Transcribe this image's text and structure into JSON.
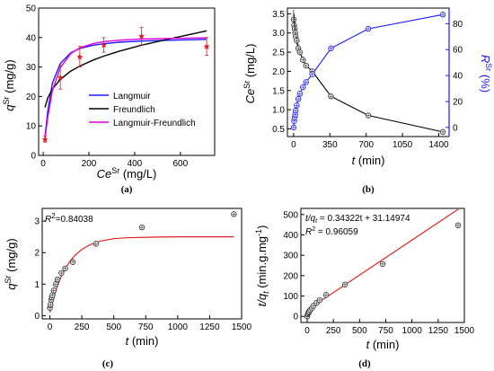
{
  "colors": {
    "langmuir": "#1a1aff",
    "freundlich": "#000000",
    "lf": "#e100e1",
    "points_a": "#e02020",
    "blue_axis": "#1a1aff",
    "fit": "#e02020"
  },
  "panels": {
    "a": {
      "caption": "(a)",
      "ylabel": "q",
      "ylabel_sup": "Sr",
      "ylabel_unit": " (mg/g)",
      "xlabel": "Ce",
      "xlabel_sup": "Sr",
      "xlabel_unit": " (mg/L)"
    },
    "b": {
      "caption": "(b)",
      "ylabel": "Ce",
      "ylabel_sup": "Sr",
      "ylabel_unit": " (mg/L)",
      "ylabel2": "R",
      "ylabel2_sup": "Sr",
      "ylabel2_unit": " (%)",
      "xlabel": "t",
      "xlabel_unit": " (min)"
    },
    "c": {
      "caption": "(c)",
      "ylabel": "q",
      "ylabel_sup": "Sr",
      "ylabel_unit": " (mg/g)",
      "xlabel": "t",
      "xlabel_unit": " (min)",
      "annotation": "R",
      "annotation_sup": "2",
      "annotation_rest": "=0.84038"
    },
    "d": {
      "caption": "(d)",
      "ylabel": "t/q",
      "ylabel_sub": "t",
      "ylabel_unit": " (min.g.mg",
      "ylabel_sup": "-1",
      "ylabel_end": ")",
      "xlabel": "t",
      "xlabel_unit": " (min)",
      "eq1": "t/q",
      "eq1_sub": "t",
      "eq1_rest": " = 0.34322t + 31.14974",
      "eq2": "R",
      "eq2_sup": "2",
      "eq2_rest": " = 0.96059"
    }
  },
  "chart_data": [
    {
      "type": "scatter",
      "panel": "a",
      "xlim": [
        -20,
        750
      ],
      "ylim": [
        0,
        50
      ],
      "xticks": [
        0,
        200,
        400,
        600
      ],
      "yticks": [
        0,
        10,
        20,
        30,
        40,
        50
      ],
      "legend_position": "bottom-right",
      "points": {
        "x": [
          8,
          75,
          160,
          265,
          430,
          715
        ],
        "y": [
          5.5,
          26.5,
          33.5,
          37.5,
          40.5,
          37
        ],
        "err": [
          1,
          4,
          3.5,
          2.5,
          3,
          3
        ]
      },
      "series": [
        {
          "name": "Langmuir",
          "color": "#1a1aff",
          "x": [
            8,
            20,
            40,
            75,
            120,
            160,
            220,
            265,
            330,
            430,
            550,
            715
          ],
          "y": [
            6.5,
            15,
            24.5,
            31.2,
            34.8,
            36.3,
            37.4,
            37.9,
            38.4,
            38.8,
            39.1,
            39.4
          ]
        },
        {
          "name": "Freundlich",
          "color": "#000000",
          "x": [
            8,
            20,
            40,
            75,
            120,
            160,
            220,
            265,
            330,
            430,
            550,
            715
          ],
          "y": [
            16.3,
            19.5,
            22.5,
            25.8,
            28.6,
            30.3,
            32.4,
            33.7,
            35.3,
            37.4,
            39.5,
            42.3
          ]
        },
        {
          "name": "Langmuir-Freundlich",
          "color": "#e100e1",
          "x": [
            8,
            20,
            40,
            75,
            120,
            160,
            220,
            265,
            330,
            430,
            550,
            715
          ],
          "y": [
            5.8,
            13,
            22,
            29.8,
            34.5,
            36.5,
            38,
            38.6,
            39.1,
            39.5,
            39.7,
            39.9
          ]
        }
      ]
    },
    {
      "type": "line",
      "panel": "b",
      "xlim": [
        -60,
        1500
      ],
      "ylim": [
        0.3,
        3.65
      ],
      "y2lim": [
        -7,
        92
      ],
      "xticks": [
        0,
        350,
        700,
        1050,
        1400
      ],
      "yticks": [
        0.5,
        1.0,
        1.5,
        2.0,
        2.5,
        3.0,
        3.5
      ],
      "y2ticks": [
        0,
        20,
        40,
        60,
        80
      ],
      "series": [
        {
          "name": "",
          "axis": "left",
          "color": "#000000",
          "x": [
            0,
            5,
            10,
            15,
            20,
            30,
            45,
            60,
            90,
            120,
            180,
            360,
            720,
            1440
          ],
          "y": [
            3.35,
            3.2,
            3.1,
            3.0,
            2.9,
            2.8,
            2.6,
            2.5,
            2.3,
            2.15,
            2.0,
            1.35,
            0.85,
            0.42
          ],
          "err": [
            0.25,
            0.3,
            0.2,
            0.15,
            0.1,
            0.1,
            0.1,
            0.08,
            0.08,
            0.05,
            0.05,
            0.05,
            0.05,
            0.05
          ]
        },
        {
          "name": "",
          "axis": "right",
          "color": "#1a1aff",
          "x": [
            0,
            5,
            10,
            15,
            20,
            30,
            45,
            60,
            90,
            120,
            180,
            360,
            720,
            1440
          ],
          "y": [
            0,
            5,
            8,
            10,
            13,
            17,
            22,
            26,
            31,
            35,
            41,
            61,
            76,
            87
          ]
        }
      ]
    },
    {
      "type": "scatter",
      "panel": "c",
      "xlim": [
        -60,
        1500
      ],
      "ylim": [
        -0.1,
        3.4
      ],
      "xticks": [
        0,
        250,
        500,
        750,
        1000,
        1250,
        1500
      ],
      "yticks": [
        0,
        1,
        2,
        3
      ],
      "points": {
        "x": [
          0,
          5,
          10,
          15,
          20,
          30,
          45,
          60,
          90,
          120,
          180,
          360,
          720,
          1440
        ],
        "y": [
          0.25,
          0.35,
          0.5,
          0.58,
          0.65,
          0.8,
          1.0,
          1.15,
          1.35,
          1.5,
          1.7,
          2.28,
          2.8,
          3.22
        ]
      },
      "series": [
        {
          "name": "",
          "color": "#e02020",
          "x": [
            0,
            20,
            40,
            60,
            80,
            100,
            130,
            160,
            200,
            250,
            300,
            350,
            400,
            500,
            600,
            800,
            1000,
            1200,
            1440
          ],
          "y": [
            0.1,
            0.42,
            0.7,
            0.95,
            1.16,
            1.34,
            1.56,
            1.74,
            1.93,
            2.1,
            2.22,
            2.31,
            2.37,
            2.44,
            2.47,
            2.49,
            2.5,
            2.5,
            2.5
          ]
        }
      ]
    },
    {
      "type": "scatter",
      "panel": "d",
      "xlim": [
        -60,
        1500
      ],
      "ylim": [
        -30,
        530
      ],
      "xticks": [
        0,
        250,
        500,
        750,
        1000,
        1250,
        1500
      ],
      "yticks": [
        0,
        100,
        200,
        300,
        400,
        500
      ],
      "points": {
        "x": [
          0,
          5,
          10,
          15,
          20,
          30,
          45,
          60,
          90,
          120,
          180,
          360,
          720,
          1440
        ],
        "y": [
          0,
          10,
          15,
          20,
          25,
          32,
          40,
          52,
          66,
          80,
          105,
          156,
          257,
          447
        ]
      },
      "series": [
        {
          "name": "",
          "color": "#e02020",
          "x": [
            0,
            1440
          ],
          "y": [
            31.15,
            525.39
          ]
        }
      ]
    }
  ]
}
